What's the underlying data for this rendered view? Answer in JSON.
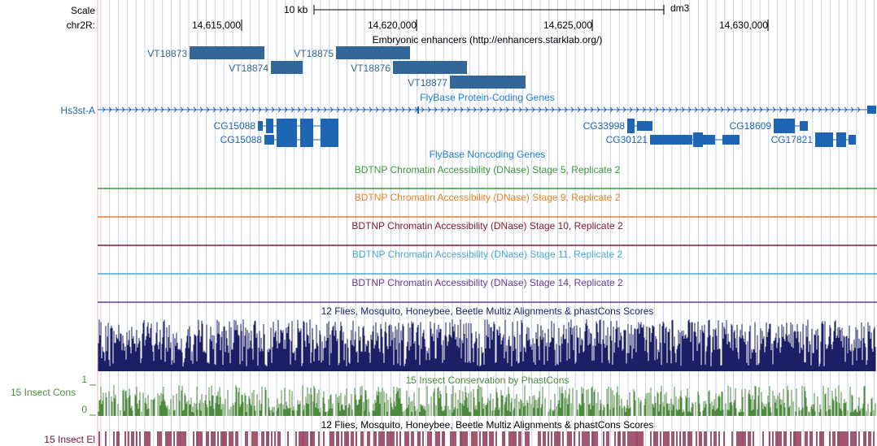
{
  "header": {
    "scale_label": "Scale",
    "scale_bar": "10 kb",
    "assembly": "dm3",
    "chrom_label": "chr2R:",
    "positions": [
      "14,615,000",
      "14,620,000",
      "14,625,000",
      "14,630,000"
    ]
  },
  "tracks": {
    "enhancers": {
      "title": "Embryonic enhancers (http://enhancers.starklab.org/)",
      "items": [
        "VT18873",
        "VT18874",
        "VT18875",
        "VT18876",
        "VT18877"
      ]
    },
    "coding_genes": {
      "title": "FlyBase Protein-Coding Genes",
      "side_label": "Hs3st-A",
      "genes": [
        "CG15088",
        "CG15088",
        "CG33998",
        "CG30121",
        "CG18609",
        "CG17821"
      ]
    },
    "noncoding": {
      "title": "FlyBase Noncoding Genes"
    },
    "dnase": [
      {
        "title": "BDTNP Chromatin Accessibility (DNase) Stage 5, Replicate 2",
        "color": "#3a9a3a"
      },
      {
        "title": "BDTNP Chromatin Accessibility (DNase) Stage 9, Replicate 2",
        "color": "#f07f22"
      },
      {
        "title": "BDTNP Chromatin Accessibility (DNase) Stage 10, Replicate 2",
        "color": "#8a1a2a"
      },
      {
        "title": "BDTNP Chromatin Accessibility (DNase) Stage 11, Replicate 2",
        "color": "#4aa8d8"
      },
      {
        "title": "BDTNP Chromatin Accessibility (DNase) Stage 14, Replicate 2",
        "color": "#6a3a9a"
      }
    ],
    "multiz": {
      "title": "12 Flies, Mosquito, Honeybee, Beetle Multiz Alignments & phastCons Scores",
      "color": "#1a1f66"
    },
    "phastcons": {
      "title": "15 Insect Conservation by PhastCons",
      "side_label": "15 Insect Cons",
      "axis_top": "1",
      "axis_bottom": "0",
      "color": "#4e8a3e"
    },
    "elements": {
      "title": "12 Flies, Mosquito, Honeybee, Beetle Multiz Alignments & phastCons Scores",
      "side_label": "15 Insect El",
      "color": "#7a1030"
    }
  },
  "colors": {
    "gene": "#1e66b4",
    "enhancer": "#336699",
    "grid": "#c9d0e8",
    "left_margin_line": "#f4b8b8"
  }
}
